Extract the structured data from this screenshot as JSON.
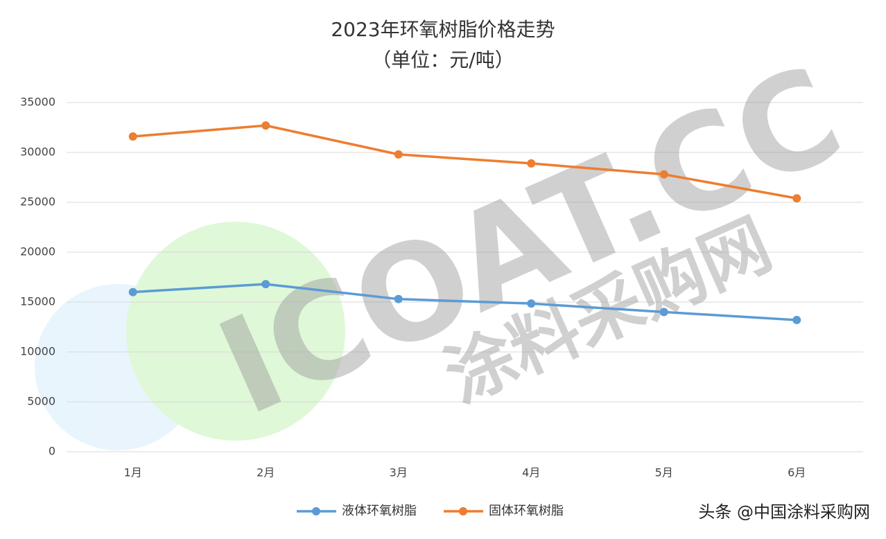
{
  "chart_data": {
    "type": "line",
    "title": "2023年环氧树脂价格走势",
    "subtitle": "（单位：元/吨）",
    "categories": [
      "1月",
      "2月",
      "3月",
      "4月",
      "5月",
      "6月"
    ],
    "series": [
      {
        "name": "液体环氧树脂",
        "color": "#5b9bd5",
        "values": [
          16000,
          16800,
          15300,
          14850,
          14000,
          13200
        ]
      },
      {
        "name": "固体环氧树脂",
        "color": "#ed7d31",
        "values": [
          31600,
          32700,
          29800,
          28900,
          27800,
          25400
        ]
      }
    ],
    "ylim": [
      0,
      35000
    ],
    "yticks": [
      0,
      5000,
      10000,
      15000,
      20000,
      25000,
      30000,
      35000
    ],
    "grid": true,
    "legend": "bottom"
  },
  "watermark": [
    "ICOAT.CC",
    "涂料采购网"
  ],
  "credit": "头条 @中国涂料采购网"
}
